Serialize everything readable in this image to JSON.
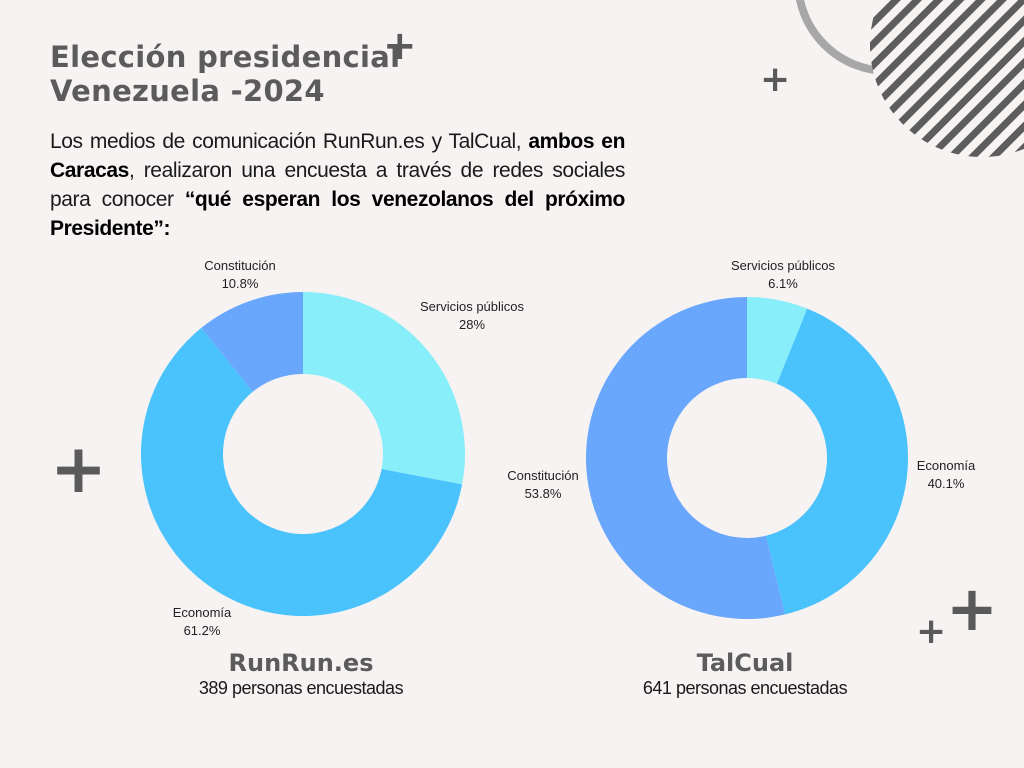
{
  "header": {
    "title_line1": "Elección presidencial",
    "title_line2": "Venezuela -2024"
  },
  "intro": {
    "part1": "Los medios de comunicación RunRun.es y TalCual, ",
    "bold1": "ambos en Caracas",
    "part2": ", realizaron una encuesta a través de redes sociales para conocer ",
    "bold2": "“qué esperan los venezolanos del próximo Presidente”:"
  },
  "decorations": {
    "plus": "+"
  },
  "colors": {
    "servicios": "#87eefa",
    "economia": "#4ac3fd",
    "constitucion": "#68a7fc",
    "deco_gray": "#5a5a5a"
  },
  "chart_data": [
    {
      "type": "pie",
      "variant": "donut",
      "title": "RunRun.es",
      "subtitle": "389 personas encuestadas",
      "slices": [
        {
          "label": "Servicios públicos",
          "value": 28,
          "value_label": "28%"
        },
        {
          "label": "Economía",
          "value": 61.2,
          "value_label": "61.2%"
        },
        {
          "label": "Constitución",
          "value": 10.8,
          "value_label": "10.8%"
        }
      ]
    },
    {
      "type": "pie",
      "variant": "donut",
      "title": "TalCual",
      "subtitle": "641 personas encuestadas",
      "slices": [
        {
          "label": "Servicios públicos",
          "value": 6.1,
          "value_label": "6.1%"
        },
        {
          "label": "Economía",
          "value": 40.1,
          "value_label": "40.1%"
        },
        {
          "label": "Constitución",
          "value": 53.8,
          "value_label": "53.8%"
        }
      ]
    }
  ]
}
